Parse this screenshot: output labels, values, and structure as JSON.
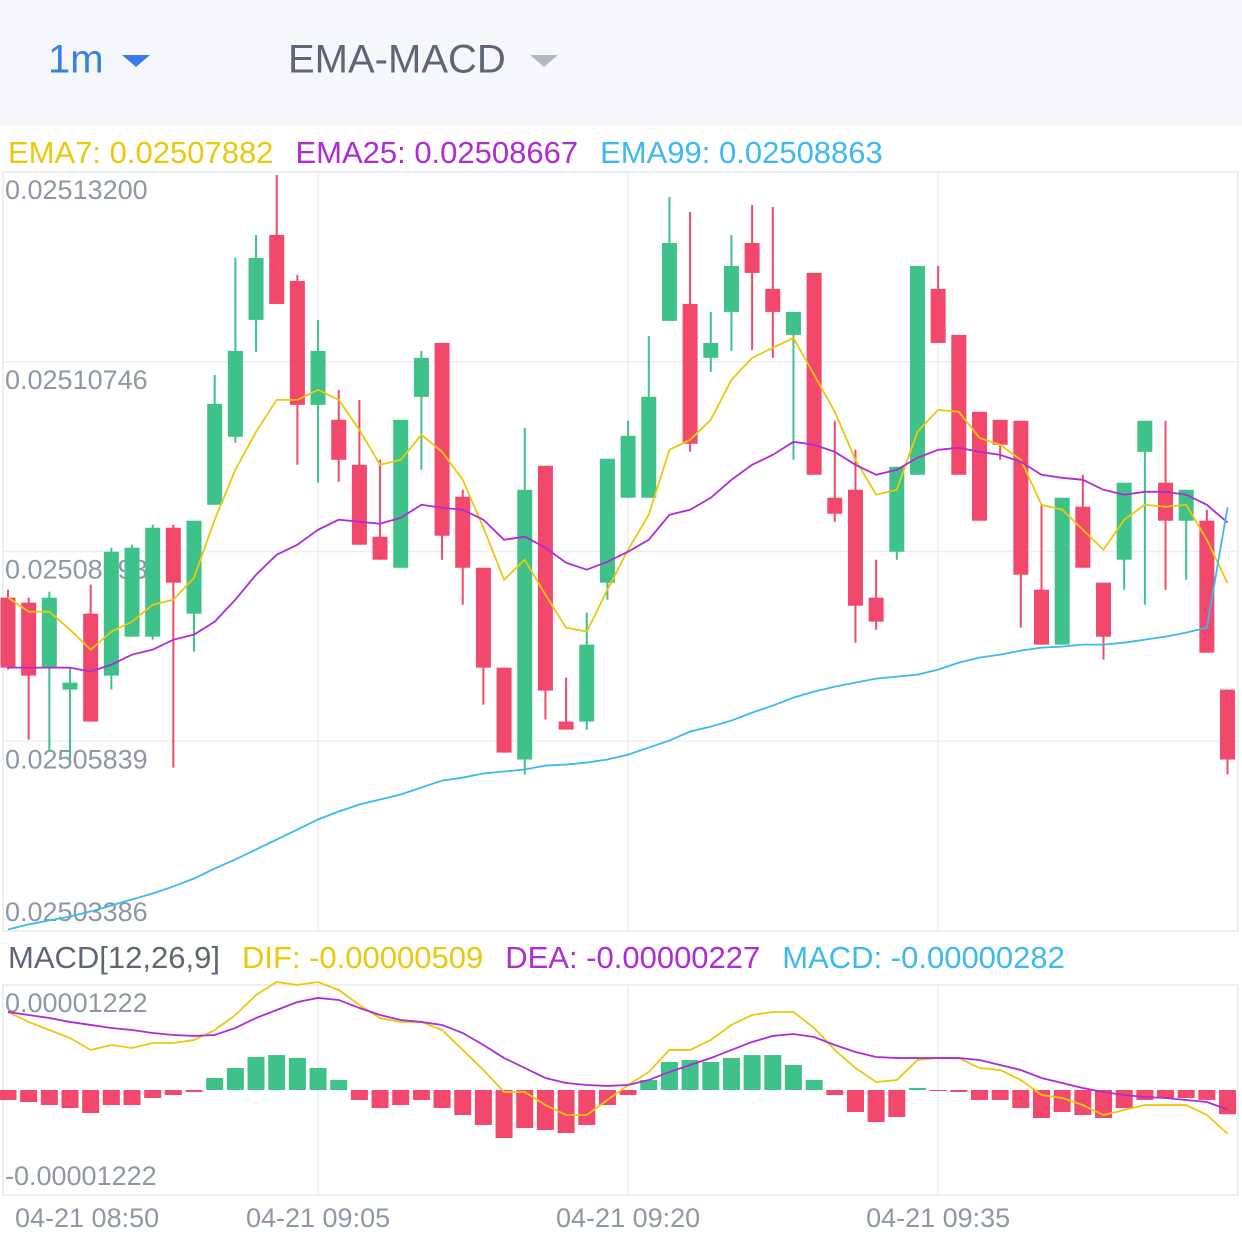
{
  "header": {
    "interval": "1m",
    "indicator": "EMA-MACD"
  },
  "chart_data": [
    {
      "type": "candlestick",
      "ylim": [
        0.02503386,
        0.025132
      ],
      "yticks": [
        {
          "value": 0.025132,
          "label": "0.02513200"
        },
        0.02510746,
        0.02508293,
        0.02505839,
        0.02503386
      ],
      "grid": true,
      "up_color": "#3ec28a",
      "down_color": "#f2486b",
      "open": [
        0.02507696,
        0.02507631,
        0.02506791,
        0.02506507,
        0.02507489,
        0.02506688,
        0.02507192,
        0.02507192,
        0.025086,
        0.02507489,
        0.02508897,
        0.02509776,
        0.02511288,
        0.02512386,
        0.02511791,
        0.02510189,
        0.02509996,
        0.02509414,
        0.02508484,
        0.02508083,
        0.02510293,
        0.0251099,
        0.02509001,
        0.02508083,
        0.02506791,
        0.02505603,
        0.02509401,
        0.02506094,
        0.02506094,
        0.0250789,
        0.02508988,
        0.02508988,
        0.02511275,
        0.02511494,
        0.02510797,
        0.02511391,
        0.02512282,
        0.02511688,
        0.02511094,
        0.02511895,
        0.02508988,
        0.02509091,
        0.02507696,
        0.0250829,
        0.02509285,
        0.02511688,
        0.02511094,
        0.02510099,
        0.02509996,
        0.02509983,
        0.02507799,
        0.02507089,
        0.02508872,
        0.0250789,
        0.02508187,
        0.02509582,
        0.02509182,
        0.02508691,
        0.02508691,
        0.02506507
      ],
      "high": [
        0.02507799,
        0.02507696,
        0.02507773,
        0.02506791,
        0.02507864,
        0.02508342,
        0.02508381,
        0.02508639,
        0.02508639,
        0.02508691,
        0.02510577,
        0.02512089,
        0.02512386,
        0.02513161,
        0.02511869,
        0.02511288,
        0.02510383,
        0.02510254,
        0.02509479,
        0.02509996,
        0.02510887,
        0.0251099,
        0.02509091,
        0.02508083,
        0.02506791,
        0.02509892,
        0.02509401,
        0.02506662,
        0.02507502,
        0.02509492,
        0.02509983,
        0.02511081,
        0.02512877,
        0.02512683,
        0.02511391,
        0.02512386,
        0.02512773,
        0.02512748,
        0.02511391,
        0.02511895,
        0.02509983,
        0.02509608,
        0.02508187,
        0.02509388,
        0.02511985,
        0.02511985,
        0.02511094,
        0.02510099,
        0.02509996,
        0.02509983,
        0.02508897,
        0.02508988,
        0.02509285,
        0.0250789,
        0.02509182,
        0.02509983,
        0.02509983,
        0.02509091,
        0.02508833,
        0.02506507
      ],
      "low": [
        0.02506766,
        0.02505861,
        0.02505706,
        0.02505603,
        0.02506094,
        0.02506507,
        0.02507192,
        0.02507153,
        0.02505499,
        0.02506998,
        0.02508897,
        0.02509698,
        0.02510874,
        0.02511494,
        0.02509414,
        0.02509182,
        0.02509195,
        0.02508381,
        0.02508187,
        0.02508083,
        0.0250935,
        0.02508187,
        0.02507605,
        0.02506313,
        0.02505693,
        0.02505409,
        0.0250612,
        0.0250599,
        0.0250599,
        0.0250767,
        0.02508988,
        0.02508988,
        0.02511275,
        0.02509582,
        0.02510616,
        0.02510887,
        0.025109,
        0.02510797,
        0.02509479,
        0.02509285,
        0.02508678,
        0.02507114,
        0.02507282,
        0.02508187,
        0.02509285,
        0.0251099,
        0.02509285,
        0.02508691,
        0.02509479,
        0.02507308,
        0.02507089,
        0.02507089,
        0.02508083,
        0.02506895,
        0.02507799,
        0.02507605,
        0.02507799,
        0.02507928,
        0.02506985,
        0.02505409
      ],
      "close": [
        0.02506791,
        0.02506688,
        0.02507696,
        0.02506598,
        0.02506094,
        0.0250829,
        0.02508342,
        0.025086,
        0.0250789,
        0.02508691,
        0.02510202,
        0.02510887,
        0.02512089,
        0.02511494,
        0.02510189,
        0.02510887,
        0.02509479,
        0.02508381,
        0.02508187,
        0.02509996,
        0.02510797,
        0.02508497,
        0.02508083,
        0.02506791,
        0.02505693,
        0.02509091,
        0.02506494,
        0.0250599,
        0.02507089,
        0.02509492,
        0.02509789,
        0.02510293,
        0.02512282,
        0.02509686,
        0.0251099,
        0.02511985,
        0.02511895,
        0.02511391,
        0.02511391,
        0.02509285,
        0.02508781,
        0.02507592,
        0.02507386,
        0.02509388,
        0.02511985,
        0.0251099,
        0.02509285,
        0.02508691,
        0.02509673,
        0.02507993,
        0.02507089,
        0.02508988,
        0.02508083,
        0.02507192,
        0.02509182,
        0.02509983,
        0.02508691,
        0.02509091,
        0.02506985,
        0.02505603
      ],
      "series": [
        {
          "name": "EMA7: 0.02507882",
          "color": "#ecc80c",
          "values": [
            0.02507696,
            0.02507515,
            0.02507515,
            0.02507282,
            0.02507024,
            0.02507257,
            0.02507386,
            0.02507605,
            0.0250767,
            0.02507954,
            0.02508704,
            0.0250935,
            0.02509841,
            0.02510254,
            0.02510254,
            0.02510383,
            0.02510254,
            0.02509866,
            0.02509414,
            0.02509479,
            0.02509802,
            0.02509582,
            0.0250922,
            0.025086,
            0.02507928,
            0.02508187,
            0.02507735,
            0.02507308,
            0.02507257,
            0.02507799,
            0.02508316,
            0.02508768,
            0.02509608,
            0.02509737,
            0.02509996,
            0.02510512,
            0.02510797,
            0.02510926,
            0.02511055,
            0.02510577,
            0.02510099,
            0.02509479,
            0.02509027,
            0.02509091,
            0.02509841,
            0.02510125,
            0.02510099,
            0.02509763,
            0.02509673,
            0.02509479,
            0.02508897,
            0.02508833,
            0.02508574,
            0.02508316,
            0.02508704,
            0.02508897,
            0.02508872,
            0.02508897,
            0.02508445,
            0.02507882
          ]
        },
        {
          "name": "EMA25: 0.02508667",
          "color": "#b02ad6",
          "values": [
            0.02506791,
            0.02506791,
            0.02506791,
            0.02506791,
            0.0250674,
            0.0250683,
            0.02506959,
            0.02507024,
            0.02507153,
            0.02507218,
            0.02507386,
            0.0250767,
            0.02507993,
            0.02508251,
            0.02508381,
            0.02508574,
            0.02508704,
            0.02508678,
            0.02508652,
            0.02508729,
            0.02508897,
            0.02508859,
            0.02508833,
            0.02508704,
            0.02508445,
            0.02508484,
            0.02508342,
            0.02508148,
            0.02508058,
            0.02508161,
            0.0250829,
            0.02508445,
            0.02508768,
            0.02508833,
            0.02508988,
            0.0250922,
            0.02509414,
            0.02509543,
            0.02509711,
            0.02509673,
            0.02509582,
            0.02509414,
            0.02509285,
            0.0250935,
            0.02509505,
            0.02509608,
            0.02509634,
            0.02509582,
            0.02509543,
            0.02509453,
            0.02509285,
            0.02509246,
            0.0250922,
            0.02509091,
            0.02509027,
            0.02509065,
            0.02509065,
            0.02509027,
            0.02508897,
            0.02508667
          ]
        },
        {
          "name": "EMA99: 0.02508863",
          "color": "#3cb9ef",
          "values": [
            0.02503406,
            0.02503471,
            0.02503523,
            0.02503574,
            0.02503639,
            0.02503716,
            0.02503794,
            0.02503871,
            0.02503962,
            0.02504065,
            0.02504194,
            0.02504311,
            0.0250444,
            0.02504569,
            0.02504698,
            0.02504828,
            0.02504931,
            0.02505021,
            0.02505086,
            0.02505151,
            0.02505241,
            0.02505331,
            0.0250537,
            0.02505422,
            0.02505448,
            0.02505474,
            0.02505525,
            0.02505538,
            0.02505564,
            0.02505603,
            0.02505667,
            0.02505758,
            0.02505848,
            0.02505965,
            0.02506029,
            0.02506107,
            0.0250621,
            0.025063,
            0.02506404,
            0.02506481,
            0.02506546,
            0.02506598,
            0.02506649,
            0.02506675,
            0.02506701,
            0.02506766,
            0.02506856,
            0.02506921,
            0.02506959,
            0.02507011,
            0.0250705,
            0.02507063,
            0.02507089,
            0.02507089,
            0.02507114,
            0.02507153,
            0.02507192,
            0.02507244,
            0.02507308,
            0.02508863
          ]
        }
      ]
    },
    {
      "type": "macd",
      "title": "MACD[12,26,9]",
      "ylim": [
        -1.222e-05,
        1.222e-05
      ],
      "yticks": [
        -1.222e-05,
        1.222e-05
      ],
      "grid": true,
      "up_color": "#3ec28a",
      "down_color": "#f2486b",
      "categories": [
        "04-21 08:50",
        null,
        null,
        null,
        null,
        null,
        null,
        null,
        null,
        null,
        null,
        null,
        null,
        null,
        null,
        "04-21 09:05",
        null,
        null,
        null,
        null,
        null,
        null,
        null,
        null,
        null,
        null,
        null,
        null,
        null,
        null,
        "04-21 09:20",
        null,
        null,
        null,
        null,
        null,
        null,
        null,
        null,
        null,
        null,
        null,
        null,
        null,
        null,
        "04-21 09:35",
        null,
        null,
        null,
        null,
        null,
        null,
        null,
        null,
        null,
        null,
        null,
        null,
        null,
        null
      ],
      "series": [
        {
          "name": "DIF: -0.00000509",
          "color": "#ecc80c",
          "style": "line",
          "values": [
            9.08e-06,
            7.92e-06,
            6.98e-06,
            6.05e-06,
            4.66e-06,
            5.24e-06,
            4.89e-06,
            5.47e-06,
            5.47e-06,
            5.82e-06,
            6.98e-06,
            8.73e-06,
            1.106e-05,
            1.257e-05,
            1.222e-05,
            1.257e-05,
            1.164e-05,
            9.89e-06,
            8.38e-06,
            7.92e-06,
            7.92e-06,
            6.98e-06,
            4.66e-06,
            2.33e-06,
            -2.3e-07,
            -2.3e-07,
            -1.75e-06,
            -2.91e-06,
            -2.91e-06,
            -1.16e-06,
            5.8e-07,
            2.1e-06,
            4.66e-06,
            4.66e-06,
            5.82e-06,
            7.57e-06,
            8.73e-06,
            9.08e-06,
            9.08e-06,
            7.22e-06,
            4.66e-06,
            2.56e-06,
            9.3e-07,
            1.16e-06,
            3.49e-06,
            3.72e-06,
            3.72e-06,
            2.56e-06,
            2.33e-06,
            1.16e-06,
            -5.8e-07,
            -9.3e-07,
            -1.75e-06,
            -2.91e-06,
            -2.33e-06,
            -1.75e-06,
            -1.75e-06,
            -1.75e-06,
            -2.91e-06,
            -5.09e-06
          ]
        },
        {
          "name": "DEA: -0.00000227",
          "color": "#b02ad6",
          "style": "line",
          "values": [
            9.08e-06,
            8.73e-06,
            8.38e-06,
            7.92e-06,
            7.57e-06,
            7.22e-06,
            6.98e-06,
            6.63e-06,
            6.4e-06,
            6.29e-06,
            6.4e-06,
            7.22e-06,
            8.38e-06,
            9.31e-06,
            1.024e-05,
            1.071e-05,
            1.048e-05,
            9.54e-06,
            8.73e-06,
            8.15e-06,
            7.92e-06,
            7.57e-06,
            6.63e-06,
            5.24e-06,
            3.72e-06,
            2.56e-06,
            1.4e-06,
            8.1e-07,
            5.8e-07,
            4.7e-07,
            5.8e-07,
            1.16e-06,
            2.1e-06,
            2.91e-06,
            3.72e-06,
            4.66e-06,
            5.59e-06,
            6.29e-06,
            6.52e-06,
            6.17e-06,
            5.24e-06,
            4.42e-06,
            3.84e-06,
            3.72e-06,
            3.72e-06,
            3.72e-06,
            3.72e-06,
            3.49e-06,
            2.91e-06,
            2.33e-06,
            1.4e-06,
            8.1e-07,
            2.3e-07,
            -2.3e-07,
            -5.8e-07,
            -8.1e-07,
            -9.3e-07,
            -1.16e-06,
            -1.4e-06,
            -2.27e-06
          ]
        },
        {
          "name": "MACD: -0.00000282",
          "color": "#3cb9ef",
          "style": "bar",
          "values": [
            -1.16e-06,
            -1.4e-06,
            -1.75e-06,
            -2.1e-06,
            -2.68e-06,
            -1.75e-06,
            -1.75e-06,
            -9.3e-07,
            -5.8e-07,
            -2.3e-07,
            1.4e-06,
            2.56e-06,
            3.84e-06,
            4.07e-06,
            3.73e-06,
            2.56e-06,
            1.16e-06,
            -1.16e-06,
            -2.1e-06,
            -1.75e-06,
            -1.16e-06,
            -2.1e-06,
            -2.91e-06,
            -4.07e-06,
            -5.59e-06,
            -4.42e-06,
            -4.66e-06,
            -5.01e-06,
            -4.07e-06,
            -1.75e-06,
            -5.8e-07,
            1.16e-06,
            3.26e-06,
            3.49e-06,
            3.26e-06,
            3.73e-06,
            4.07e-06,
            4.07e-06,
            2.91e-06,
            1.16e-06,
            -5.8e-07,
            -2.56e-06,
            -3.73e-06,
            -3.14e-06,
            2.3e-07,
            -1.2e-07,
            -2.3e-07,
            -1.16e-06,
            -1.16e-06,
            -2.1e-06,
            -3.26e-06,
            -2.56e-06,
            -2.91e-06,
            -3.26e-06,
            -2.1e-06,
            -1.16e-06,
            -9.3e-07,
            -9.3e-07,
            -1.16e-06,
            -2.82e-06
          ]
        }
      ]
    }
  ]
}
